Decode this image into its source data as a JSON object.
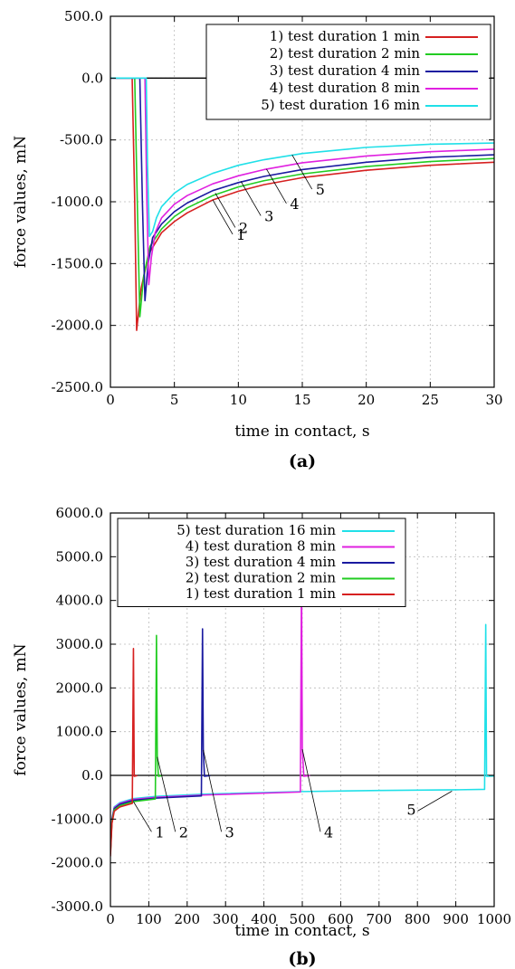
{
  "chart_data": [
    {
      "type": "line",
      "panel_label": "(a)",
      "xlabel": "time in contact, s",
      "ylabel": "force values, mN",
      "xlim": [
        0,
        30
      ],
      "ylim": [
        -2500,
        500
      ],
      "xticks": [
        0,
        5,
        10,
        15,
        20,
        25,
        30
      ],
      "xtick_labels": [
        "0",
        "5",
        "10",
        "15",
        "20",
        "25",
        "30"
      ],
      "yticks": [
        500,
        0,
        -500,
        -1000,
        -1500,
        -2000,
        -2500
      ],
      "ytick_labels": [
        "500.0",
        "0.0",
        "-500.0",
        "-1000.0",
        "-1500.0",
        "-2000.0",
        "-2500.0"
      ],
      "grid": true,
      "legend_position": "top-right",
      "zero_line": true,
      "series": [
        {
          "name": "1) test duration 1 min",
          "color": "#d62020",
          "points": [
            [
              0,
              0
            ],
            [
              1.7,
              0
            ],
            [
              1.9,
              -1000
            ],
            [
              2.05,
              -2040
            ],
            [
              2.4,
              -1700
            ],
            [
              3,
              -1420
            ],
            [
              4,
              -1250
            ],
            [
              5,
              -1160
            ],
            [
              6,
              -1090
            ],
            [
              8,
              -985
            ],
            [
              10,
              -915
            ],
            [
              12,
              -862
            ],
            [
              15,
              -805
            ],
            [
              20,
              -745
            ],
            [
              25,
              -705
            ],
            [
              30,
              -680
            ]
          ]
        },
        {
          "name": "2) test duration 2 min",
          "color": "#22cc22",
          "points": [
            [
              0,
              0
            ],
            [
              1.9,
              0
            ],
            [
              2.1,
              -1000
            ],
            [
              2.3,
              -1930
            ],
            [
              2.6,
              -1600
            ],
            [
              3.1,
              -1360
            ],
            [
              4,
              -1220
            ],
            [
              5,
              -1120
            ],
            [
              6,
              -1050
            ],
            [
              8,
              -950
            ],
            [
              10,
              -880
            ],
            [
              12,
              -830
            ],
            [
              15,
              -775
            ],
            [
              20,
              -715
            ],
            [
              25,
              -675
            ],
            [
              30,
              -650
            ]
          ]
        },
        {
          "name": "3) test duration 4 min",
          "color": "#1a1aa0",
          "points": [
            [
              0,
              0
            ],
            [
              2.3,
              0
            ],
            [
              2.5,
              -1000
            ],
            [
              2.7,
              -1800
            ],
            [
              2.95,
              -1500
            ],
            [
              3.3,
              -1290
            ],
            [
              4,
              -1180
            ],
            [
              5,
              -1080
            ],
            [
              6,
              -1010
            ],
            [
              8,
              -910
            ],
            [
              10,
              -845
            ],
            [
              12,
              -795
            ],
            [
              15,
              -740
            ],
            [
              20,
              -680
            ],
            [
              25,
              -640
            ],
            [
              30,
              -620
            ]
          ]
        },
        {
          "name": "4) test duration 8 min",
          "color": "#e020e0",
          "points": [
            [
              0,
              0
            ],
            [
              2.7,
              0
            ],
            [
              2.85,
              -1000
            ],
            [
              3.0,
              -1670
            ],
            [
              3.2,
              -1450
            ],
            [
              3.5,
              -1250
            ],
            [
              4,
              -1130
            ],
            [
              5,
              -1020
            ],
            [
              6,
              -950
            ],
            [
              8,
              -855
            ],
            [
              10,
              -790
            ],
            [
              12,
              -740
            ],
            [
              15,
              -685
            ],
            [
              20,
              -630
            ],
            [
              25,
              -595
            ],
            [
              30,
              -575
            ]
          ]
        },
        {
          "name": "5) test duration 16 min",
          "color": "#20e0e8",
          "points": [
            [
              0,
              0
            ],
            [
              2.8,
              0
            ],
            [
              2.9,
              -700
            ],
            [
              3.05,
              -1280
            ],
            [
              3.3,
              -1240
            ],
            [
              3.6,
              -1130
            ],
            [
              4,
              -1040
            ],
            [
              5,
              -930
            ],
            [
              6,
              -860
            ],
            [
              8,
              -770
            ],
            [
              10,
              -705
            ],
            [
              12,
              -660
            ],
            [
              15,
              -610
            ],
            [
              20,
              -560
            ],
            [
              25,
              -535
            ],
            [
              30,
              -525
            ]
          ]
        }
      ],
      "callouts": [
        {
          "label": "1",
          "x": 8.0,
          "y": -985
        },
        {
          "label": "2",
          "x": 8.2,
          "y": -930
        },
        {
          "label": "3",
          "x": 10.2,
          "y": -835
        },
        {
          "label": "4",
          "x": 12.2,
          "y": -735
        },
        {
          "label": "5",
          "x": 14.2,
          "y": -620
        }
      ]
    },
    {
      "type": "line",
      "panel_label": "(b)",
      "xlabel": "time in contact, s",
      "ylabel": "force values, mN",
      "xlim": [
        0,
        1000
      ],
      "ylim": [
        -3000,
        6000
      ],
      "xticks": [
        0,
        100,
        200,
        300,
        400,
        500,
        600,
        700,
        800,
        900,
        1000
      ],
      "xtick_labels": [
        "0",
        "100",
        "200",
        "300",
        "400",
        "500",
        "600",
        "700",
        "800",
        "900",
        "1000"
      ],
      "yticks": [
        6000,
        5000,
        4000,
        3000,
        2000,
        1000,
        0,
        -1000,
        -2000,
        -3000
      ],
      "ytick_labels": [
        "6000.0",
        "5000.0",
        "4000.0",
        "3000.0",
        "2000.0",
        "1000.0",
        "0.0",
        "-1000.0",
        "-2000.0",
        "-3000.0"
      ],
      "grid": true,
      "legend_position": "top-left",
      "zero_line": true,
      "series": [
        {
          "name": "5) test duration 16 min",
          "color": "#20e0e8",
          "points": [
            [
              0,
              -1700
            ],
            [
              4,
              -1000
            ],
            [
              10,
              -720
            ],
            [
              25,
              -620
            ],
            [
              60,
              -530
            ],
            [
              120,
              -480
            ],
            [
              240,
              -430
            ],
            [
              500,
              -370
            ],
            [
              700,
              -345
            ],
            [
              900,
              -330
            ],
            [
              975,
              -320
            ],
            [
              978,
              3450
            ],
            [
              980,
              -20
            ],
            [
              1000,
              -15
            ]
          ]
        },
        {
          "name": "4) test duration 8 min",
          "color": "#e020e0",
          "points": [
            [
              0,
              -1700
            ],
            [
              4,
              -1000
            ],
            [
              10,
              -740
            ],
            [
              25,
              -640
            ],
            [
              60,
              -550
            ],
            [
              120,
              -500
            ],
            [
              240,
              -450
            ],
            [
              495,
              -380
            ],
            [
              498,
              4600
            ],
            [
              500,
              600
            ],
            [
              504,
              -20
            ],
            [
              520,
              -5
            ]
          ]
        },
        {
          "name": "3) test duration 4 min",
          "color": "#1a1aa0",
          "points": [
            [
              0,
              -1750
            ],
            [
              4,
              -1020
            ],
            [
              10,
              -760
            ],
            [
              25,
              -660
            ],
            [
              60,
              -570
            ],
            [
              120,
              -520
            ],
            [
              237,
              -470
            ],
            [
              240,
              3350
            ],
            [
              242,
              600
            ],
            [
              245,
              -20
            ],
            [
              260,
              -5
            ]
          ]
        },
        {
          "name": "2) test duration 2 min",
          "color": "#22cc22",
          "points": [
            [
              0,
              -1800
            ],
            [
              4,
              -1050
            ],
            [
              10,
              -790
            ],
            [
              25,
              -690
            ],
            [
              60,
              -600
            ],
            [
              117,
              -540
            ],
            [
              120,
              3200
            ],
            [
              122,
              450
            ],
            [
              125,
              -20
            ],
            [
              135,
              -5
            ]
          ]
        },
        {
          "name": "1) test duration 1 min",
          "color": "#d62020",
          "points": [
            [
              0,
              -1850
            ],
            [
              4,
              -1100
            ],
            [
              10,
              -820
            ],
            [
              25,
              -720
            ],
            [
              57,
              -640
            ],
            [
              60,
              2900
            ],
            [
              62,
              -20
            ],
            [
              70,
              -5
            ]
          ]
        }
      ],
      "callouts": [
        {
          "label": "1",
          "x": 60,
          "y": -600
        },
        {
          "label": "2",
          "x": 122,
          "y": 420
        },
        {
          "label": "3",
          "x": 242,
          "y": 580
        },
        {
          "label": "4",
          "x": 500,
          "y": 600
        },
        {
          "label": "5",
          "x": 890,
          "y": -360
        }
      ]
    }
  ]
}
